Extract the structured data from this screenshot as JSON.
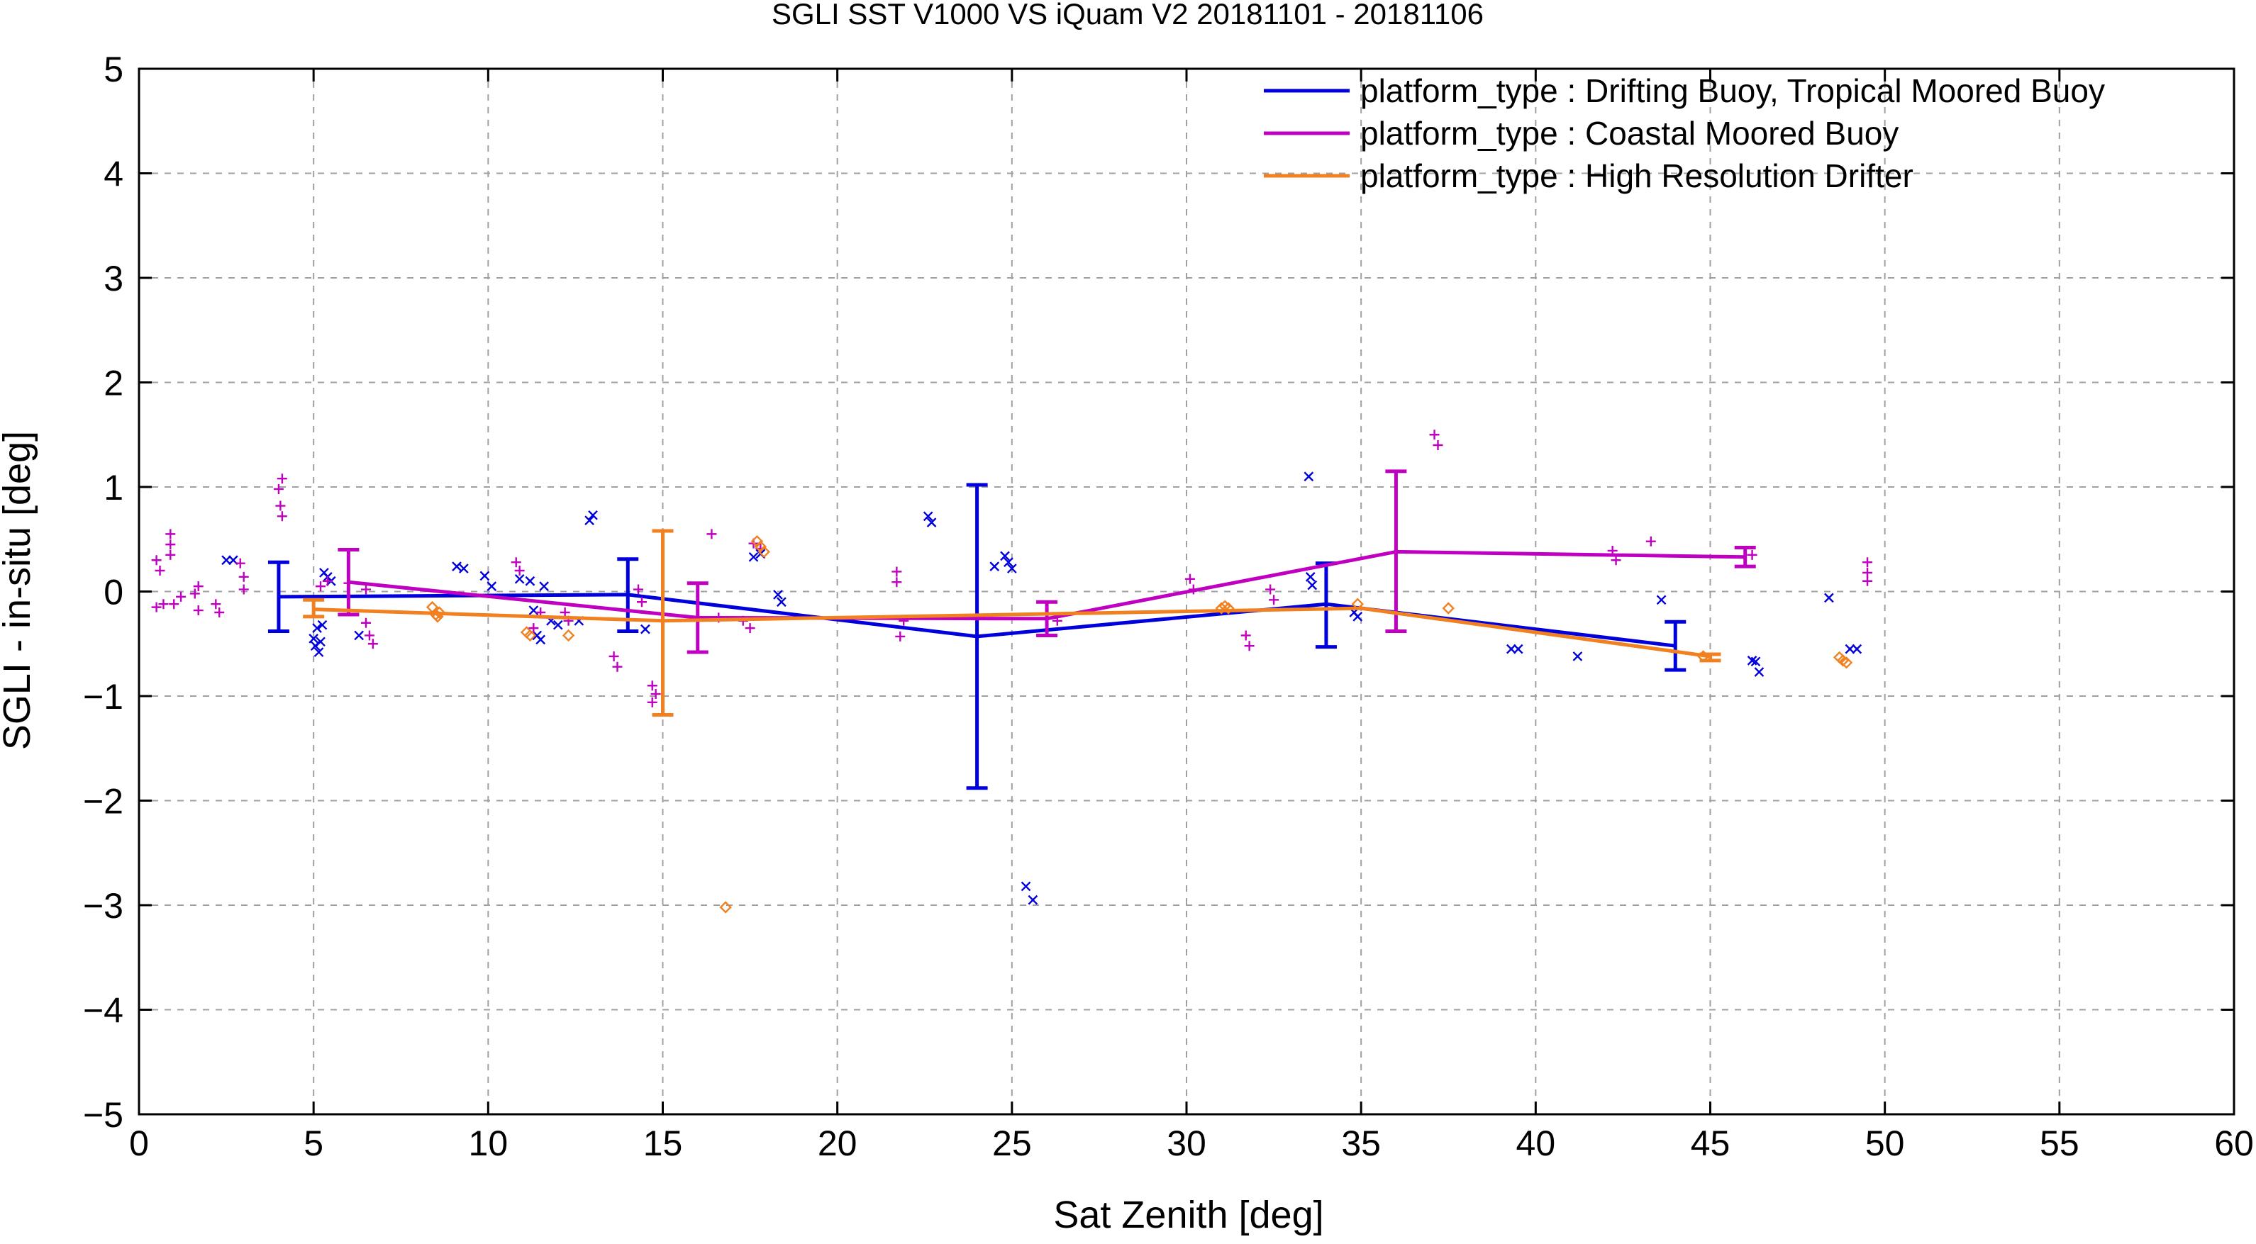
{
  "chart_data": {
    "type": "line",
    "title": "SGLI SST V1000 VS iQuam V2 20181101 - 20181106",
    "xlabel": "Sat Zenith [deg]",
    "ylabel": "SGLI - in-situ [deg]",
    "xlim": [
      0,
      60
    ],
    "ylim": [
      -5,
      5
    ],
    "x_ticks": [
      0,
      5,
      10,
      15,
      20,
      25,
      30,
      35,
      40,
      45,
      50,
      55,
      60
    ],
    "y_ticks": [
      -5,
      -4,
      -3,
      -2,
      -1,
      0,
      1,
      2,
      3,
      4,
      5
    ],
    "x_tick_labels": [
      "0",
      "5",
      "10",
      "15",
      "20",
      "25",
      "30",
      "35",
      "40",
      "45",
      "50",
      "55",
      "60"
    ],
    "y_tick_labels": [
      "−5",
      "−4",
      "−3",
      "−2",
      "−1",
      "0",
      "1",
      "2",
      "3",
      "4",
      "5"
    ],
    "grid": true,
    "legend_position": "top-right",
    "series": [
      {
        "name": "platform_type : Drifting Buoy, Tropical Moored Buoy",
        "color": "#0000dd",
        "marker": "x",
        "line": [
          [
            4,
            -0.05
          ],
          [
            14,
            -0.03
          ],
          [
            24,
            -0.43
          ],
          [
            34,
            -0.12
          ],
          [
            44,
            -0.52
          ]
        ],
        "errorbars": [
          [
            4,
            0.28,
            -0.38
          ],
          [
            14,
            0.31,
            -0.38
          ],
          [
            24,
            1.02,
            -1.88
          ],
          [
            34,
            0.27,
            -0.53
          ],
          [
            44,
            -0.29,
            -0.75
          ]
        ],
        "points": [
          [
            2.5,
            0.3
          ],
          [
            2.7,
            0.3
          ],
          [
            5,
            -0.45
          ],
          [
            5.05,
            -0.52
          ],
          [
            5.1,
            -0.35
          ],
          [
            5.15,
            -0.58
          ],
          [
            5.2,
            -0.48
          ],
          [
            5.25,
            -0.32
          ],
          [
            5.3,
            0.18
          ],
          [
            5.4,
            0.14
          ],
          [
            5.5,
            0.1
          ],
          [
            6.3,
            -0.42
          ],
          [
            9.1,
            0.24
          ],
          [
            9.3,
            0.22
          ],
          [
            9.9,
            0.15
          ],
          [
            10.1,
            0.05
          ],
          [
            10.9,
            0.12
          ],
          [
            11.2,
            0.1
          ],
          [
            11.3,
            -0.18
          ],
          [
            11.4,
            -0.42
          ],
          [
            11.5,
            -0.46
          ],
          [
            11.6,
            0.05
          ],
          [
            11.8,
            -0.28
          ],
          [
            12.0,
            -0.32
          ],
          [
            12.6,
            -0.28
          ],
          [
            12.9,
            0.68
          ],
          [
            13.0,
            0.73
          ],
          [
            14.5,
            -0.36
          ],
          [
            17.6,
            0.33
          ],
          [
            17.8,
            0.36
          ],
          [
            18.3,
            -0.03
          ],
          [
            18.4,
            -0.1
          ],
          [
            22.6,
            0.72
          ],
          [
            22.7,
            0.66
          ],
          [
            24.5,
            0.24
          ],
          [
            24.8,
            0.34
          ],
          [
            24.9,
            0.28
          ],
          [
            25.0,
            0.22
          ],
          [
            25.4,
            -2.82
          ],
          [
            25.6,
            -2.95
          ],
          [
            33.5,
            1.1
          ],
          [
            33.55,
            0.14
          ],
          [
            33.6,
            0.06
          ],
          [
            34.8,
            -0.2
          ],
          [
            34.9,
            -0.24
          ],
          [
            39.3,
            -0.55
          ],
          [
            39.5,
            -0.55
          ],
          [
            41.2,
            -0.62
          ],
          [
            43.6,
            -0.08
          ],
          [
            46.2,
            -0.66
          ],
          [
            46.3,
            -0.67
          ],
          [
            46.4,
            -0.77
          ],
          [
            48.4,
            -0.06
          ],
          [
            49.0,
            -0.55
          ],
          [
            49.2,
            -0.55
          ]
        ]
      },
      {
        "name": "platform_type : Coastal Moored Buoy",
        "color": "#c000c0",
        "marker": "+",
        "line": [
          [
            6,
            0.09
          ],
          [
            16,
            -0.25
          ],
          [
            26,
            -0.26
          ],
          [
            36,
            0.38
          ],
          [
            46,
            0.33
          ]
        ],
        "errorbars": [
          [
            6,
            0.4,
            -0.22
          ],
          [
            16,
            0.08,
            -0.58
          ],
          [
            26,
            -0.1,
            -0.42
          ],
          [
            36,
            1.15,
            -0.38
          ],
          [
            46,
            0.42,
            0.24
          ]
        ],
        "points": [
          [
            0.5,
            0.3
          ],
          [
            0.5,
            -0.15
          ],
          [
            0.6,
            0.2
          ],
          [
            0.7,
            -0.12
          ],
          [
            0.9,
            0.55
          ],
          [
            0.9,
            0.45
          ],
          [
            0.9,
            0.35
          ],
          [
            1.0,
            -0.12
          ],
          [
            1.2,
            -0.05
          ],
          [
            1.6,
            -0.02
          ],
          [
            1.7,
            0.05
          ],
          [
            1.7,
            -0.18
          ],
          [
            2.2,
            -0.12
          ],
          [
            2.3,
            -0.2
          ],
          [
            2.9,
            0.27
          ],
          [
            3.0,
            0.14
          ],
          [
            3.0,
            0.02
          ],
          [
            4.1,
            1.08
          ],
          [
            4.0,
            0.98
          ],
          [
            4.05,
            0.82
          ],
          [
            4.1,
            0.72
          ],
          [
            5.2,
            0.05
          ],
          [
            5.4,
            0.1
          ],
          [
            6.0,
            0.08
          ],
          [
            6.5,
            -0.3
          ],
          [
            6.6,
            -0.42
          ],
          [
            6.7,
            -0.5
          ],
          [
            6.5,
            0.02
          ],
          [
            10.8,
            0.28
          ],
          [
            10.9,
            0.2
          ],
          [
            11.3,
            -0.35
          ],
          [
            11.5,
            -0.2
          ],
          [
            12.2,
            -0.2
          ],
          [
            12.3,
            -0.28
          ],
          [
            13.6,
            -0.62
          ],
          [
            13.7,
            -0.72
          ],
          [
            14.3,
            0.02
          ],
          [
            14.4,
            -0.1
          ],
          [
            14.7,
            -0.9
          ],
          [
            14.8,
            -0.98
          ],
          [
            14.7,
            -1.06
          ],
          [
            16.4,
            0.55
          ],
          [
            17.6,
            0.46
          ],
          [
            17.8,
            0.41
          ],
          [
            16.6,
            -0.25
          ],
          [
            17.3,
            -0.28
          ],
          [
            17.5,
            -0.35
          ],
          [
            21.7,
            0.19
          ],
          [
            21.7,
            0.09
          ],
          [
            21.9,
            -0.28
          ],
          [
            21.8,
            -0.43
          ],
          [
            26.3,
            -0.28
          ],
          [
            30.1,
            0.12
          ],
          [
            30.2,
            0.02
          ],
          [
            31.7,
            -0.42
          ],
          [
            31.8,
            -0.52
          ],
          [
            32.4,
            0.02
          ],
          [
            32.5,
            -0.08
          ],
          [
            37.1,
            1.5
          ],
          [
            37.2,
            1.4
          ],
          [
            42.2,
            0.39
          ],
          [
            42.3,
            0.3
          ],
          [
            43.3,
            0.48
          ],
          [
            46.2,
            0.35
          ],
          [
            49.5,
            0.28
          ],
          [
            49.5,
            0.18
          ],
          [
            49.5,
            0.1
          ]
        ]
      },
      {
        "name": "platform_type : High Resolution Drifter",
        "color": "#f08020",
        "marker": "diamond",
        "line": [
          [
            5,
            -0.17
          ],
          [
            15,
            -0.28
          ],
          [
            35,
            -0.16
          ],
          [
            45,
            -0.62
          ]
        ],
        "errorbars": [
          [
            5,
            -0.08,
            -0.24
          ],
          [
            15,
            0.58,
            -1.18
          ],
          [
            45,
            -0.6,
            -0.66
          ]
        ],
        "points": [
          [
            8.4,
            -0.15
          ],
          [
            8.5,
            -0.22
          ],
          [
            8.55,
            -0.24
          ],
          [
            8.6,
            -0.2
          ],
          [
            11.1,
            -0.39
          ],
          [
            11.2,
            -0.42
          ],
          [
            12.3,
            -0.42
          ],
          [
            16.8,
            -3.02
          ],
          [
            17.7,
            0.48
          ],
          [
            17.8,
            0.43
          ],
          [
            17.9,
            0.38
          ],
          [
            31.0,
            -0.16
          ],
          [
            31.1,
            -0.14
          ],
          [
            31.2,
            -0.16
          ],
          [
            34.9,
            -0.12
          ],
          [
            37.5,
            -0.16
          ],
          [
            44.8,
            -0.62
          ],
          [
            48.7,
            -0.63
          ],
          [
            48.8,
            -0.66
          ],
          [
            48.9,
            -0.68
          ]
        ]
      }
    ]
  }
}
